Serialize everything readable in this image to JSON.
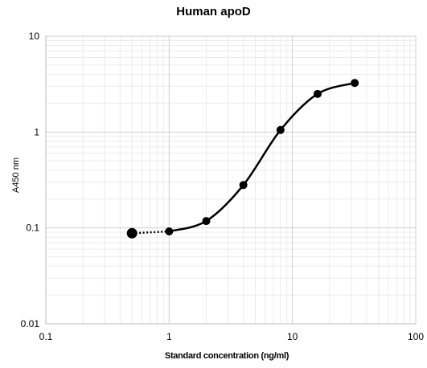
{
  "chart_data": {
    "type": "scatter",
    "title": "Human apoD",
    "xlabel": "Standard concentration (ng/ml)",
    "ylabel": "A450 nm",
    "x_scale": "log",
    "y_scale": "log",
    "xlim": [
      0.1,
      100
    ],
    "ylim": [
      0.01,
      10
    ],
    "x_ticks": [
      "0.1",
      "1",
      "10",
      "100"
    ],
    "y_ticks": [
      "0.01",
      "0.1",
      "1",
      "10"
    ],
    "grid": "major and minor",
    "legend": "none",
    "series": [
      {
        "points": [
          {
            "x": 1,
            "y": 0.092
          },
          {
            "x": 2,
            "y": 0.118
          },
          {
            "x": 4,
            "y": 0.28
          },
          {
            "x": 8,
            "y": 1.05
          },
          {
            "x": 16,
            "y": 2.5
          },
          {
            "x": 32,
            "y": 3.25
          }
        ],
        "line": "smooth solid",
        "color": "#000000"
      },
      {
        "points": [
          {
            "x": 0.5,
            "y": 0.088
          },
          {
            "x": 1,
            "y": 0.092
          }
        ],
        "line": "dotted",
        "color": "#000000"
      }
    ]
  }
}
